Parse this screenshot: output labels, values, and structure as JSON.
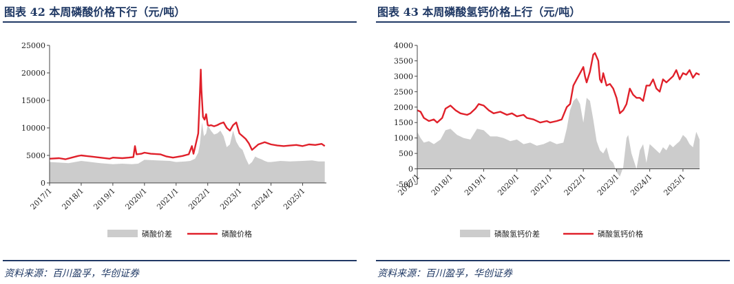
{
  "panels": [
    {
      "title": "图表 42   本周磷酸价格下行（元/吨）",
      "source": "资料来源：百川盈孚，华创证券",
      "chart_data": {
        "type": "area",
        "title": "",
        "ylim": [
          0,
          25000
        ],
        "yticks": [
          0,
          5000,
          10000,
          15000,
          20000,
          25000
        ],
        "xticks": [
          "2017/1",
          "2018/1",
          "2019/1",
          "2020/1",
          "2021/1",
          "2022/1",
          "2023/1",
          "2024/1",
          "2025/1"
        ],
        "xrange": [
          2017.0,
          2025.75
        ],
        "legend": "bottom",
        "grid": false,
        "series": [
          {
            "name": "磷酸价差",
            "kind": "area",
            "color": "#cccccc",
            "x": [
              2017.0,
              2017.3,
              2017.6,
              2017.8,
              2018.0,
              2018.3,
              2018.6,
              2019.0,
              2019.3,
              2019.6,
              2019.8,
              2020.0,
              2020.4,
              2020.8,
              2021.0,
              2021.3,
              2021.45,
              2021.6,
              2021.7,
              2021.75,
              2021.82,
              2021.88,
              2021.95,
              2022.0,
              2022.1,
              2022.2,
              2022.3,
              2022.4,
              2022.5,
              2022.6,
              2022.7,
              2022.8,
              2022.9,
              2023.0,
              2023.1,
              2023.2,
              2023.3,
              2023.4,
              2023.5,
              2023.6,
              2023.7,
              2023.8,
              2023.9,
              2024.0,
              2024.3,
              2024.6,
              2025.0,
              2025.3,
              2025.5,
              2025.7
            ],
            "y": [
              3800,
              3700,
              3600,
              3800,
              4000,
              3800,
              3600,
              3400,
              3500,
              3400,
              3500,
              4200,
              4100,
              4000,
              3800,
              3900,
              4000,
              4400,
              5500,
              7000,
              11000,
              8500,
              9000,
              10500,
              9500,
              8800,
              9000,
              9500,
              8500,
              6500,
              7000,
              9500,
              7500,
              6500,
              6000,
              4500,
              3300,
              3800,
              4800,
              4500,
              4300,
              4000,
              3800,
              3800,
              4000,
              3900,
              4000,
              4100,
              3900,
              3900
            ]
          },
          {
            "name": "磷酸价格",
            "kind": "line",
            "color": "#e0202a",
            "x": [
              2017.0,
              2017.3,
              2017.5,
              2017.7,
              2017.9,
              2018.0,
              2018.3,
              2018.6,
              2018.9,
              2019.0,
              2019.3,
              2019.5,
              2019.65,
              2019.7,
              2019.75,
              2019.9,
              2020.0,
              2020.2,
              2020.5,
              2020.7,
              2020.9,
              2021.0,
              2021.2,
              2021.4,
              2021.5,
              2021.55,
              2021.6,
              2021.7,
              2021.75,
              2021.78,
              2021.8,
              2021.85,
              2021.9,
              2021.95,
              2022.0,
              2022.05,
              2022.1,
              2022.2,
              2022.3,
              2022.4,
              2022.5,
              2022.6,
              2022.7,
              2022.8,
              2022.9,
              2023.0,
              2023.1,
              2023.2,
              2023.3,
              2023.4,
              2023.5,
              2023.6,
              2023.8,
              2024.0,
              2024.2,
              2024.4,
              2024.6,
              2024.8,
              2025.0,
              2025.2,
              2025.4,
              2025.6,
              2025.7
            ],
            "y": [
              4400,
              4500,
              4300,
              4600,
              4900,
              5000,
              4800,
              4600,
              4400,
              4600,
              4500,
              4600,
              4700,
              6700,
              5200,
              5300,
              5500,
              5300,
              5200,
              4800,
              4600,
              4700,
              4900,
              5200,
              6700,
              5300,
              6500,
              9000,
              16000,
              20600,
              17000,
              12000,
              11500,
              12500,
              10500,
              10400,
              10500,
              10300,
              10500,
              10800,
              11000,
              10000,
              9500,
              10500,
              11000,
              9000,
              8500,
              8000,
              7200,
              6000,
              6500,
              7000,
              7400,
              7000,
              6800,
              6700,
              6800,
              6900,
              6700,
              7000,
              6900,
              7100,
              6700
            ]
          }
        ]
      }
    },
    {
      "title": "图表 43   本周磷酸氢钙价格上行（元/吨）",
      "source": "资料来源：百川盈孚，华创证券",
      "chart_data": {
        "type": "area",
        "title": "",
        "ylim": [
          -500,
          4000
        ],
        "yticks": [
          -500,
          0,
          500,
          1000,
          1500,
          2000,
          2500,
          3000,
          3500,
          4000
        ],
        "xticks": [
          "2017/1",
          "2018/1",
          "2019/1",
          "2020/1",
          "2021/1",
          "2022/1",
          "2023/1",
          "2024/1",
          "2025/1"
        ],
        "xrange": [
          2017.0,
          2025.5
        ],
        "legend": "bottom",
        "grid": false,
        "series": [
          {
            "name": "磷酸氢钙价差",
            "kind": "area",
            "color": "#cccccc",
            "x": [
              2017.0,
              2017.1,
              2017.2,
              2017.35,
              2017.5,
              2017.7,
              2017.85,
              2018.0,
              2018.2,
              2018.4,
              2018.6,
              2018.8,
              2019.0,
              2019.2,
              2019.4,
              2019.6,
              2019.8,
              2020.0,
              2020.2,
              2020.4,
              2020.6,
              2020.8,
              2021.0,
              2021.2,
              2021.4,
              2021.5,
              2021.6,
              2021.7,
              2021.8,
              2021.9,
              2022.0,
              2022.1,
              2022.2,
              2022.3,
              2022.4,
              2022.5,
              2022.6,
              2022.7,
              2022.8,
              2022.9,
              2023.0,
              2023.1,
              2023.2,
              2023.3,
              2023.35,
              2023.45,
              2023.6,
              2023.7,
              2023.8,
              2023.9,
              2024.0,
              2024.1,
              2024.2,
              2024.3,
              2024.4,
              2024.5,
              2024.6,
              2024.7,
              2024.8,
              2024.9,
              2025.0,
              2025.1,
              2025.2,
              2025.3,
              2025.4,
              2025.5
            ],
            "y": [
              1200,
              1000,
              850,
              900,
              800,
              950,
              1250,
              1300,
              1100,
              1000,
              950,
              1300,
              1250,
              1050,
              1050,
              1000,
              900,
              950,
              800,
              850,
              750,
              800,
              900,
              800,
              850,
              1300,
              1900,
              2200,
              2300,
              2100,
              1500,
              2300,
              2200,
              1600,
              900,
              600,
              500,
              700,
              300,
              200,
              -100,
              -250,
              50,
              1000,
              1100,
              500,
              0,
              600,
              800,
              200,
              800,
              700,
              600,
              500,
              700,
              600,
              800,
              700,
              800,
              900,
              1100,
              1000,
              800,
              700,
              1200,
              950
            ]
          },
          {
            "name": "磷酸氢钙价格",
            "kind": "line",
            "color": "#e0202a",
            "x": [
              2017.0,
              2017.1,
              2017.2,
              2017.35,
              2017.5,
              2017.6,
              2017.75,
              2017.85,
              2018.0,
              2018.15,
              2018.3,
              2018.5,
              2018.6,
              2018.75,
              2018.85,
              2019.0,
              2019.15,
              2019.3,
              2019.5,
              2019.7,
              2019.85,
              2020.0,
              2020.2,
              2020.3,
              2020.5,
              2020.7,
              2020.9,
              2021.0,
              2021.2,
              2021.35,
              2021.5,
              2021.6,
              2021.7,
              2021.8,
              2021.9,
              2022.0,
              2022.05,
              2022.1,
              2022.2,
              2022.3,
              2022.35,
              2022.45,
              2022.5,
              2022.55,
              2022.6,
              2022.7,
              2022.8,
              2022.9,
              2023.0,
              2023.1,
              2023.2,
              2023.3,
              2023.4,
              2023.5,
              2023.6,
              2023.7,
              2023.8,
              2023.9,
              2024.0,
              2024.1,
              2024.2,
              2024.3,
              2024.4,
              2024.5,
              2024.6,
              2024.7,
              2024.8,
              2024.9,
              2025.0,
              2025.1,
              2025.2,
              2025.3,
              2025.4,
              2025.5
            ],
            "y": [
              1900,
              1850,
              1650,
              1550,
              1600,
              1500,
              1650,
              1950,
              2050,
              1900,
              1800,
              1750,
              1800,
              1950,
              2100,
              2050,
              1900,
              1800,
              1850,
              1750,
              1800,
              1700,
              1750,
              1650,
              1600,
              1500,
              1550,
              1500,
              1550,
              1600,
              2000,
              2100,
              2700,
              2900,
              3100,
              3300,
              3000,
              2800,
              3150,
              3700,
              3750,
              3500,
              2900,
              2800,
              3100,
              2700,
              2750,
              2600,
              2300,
              1800,
              1900,
              2100,
              2600,
              2400,
              2300,
              2300,
              2200,
              2700,
              2700,
              2900,
              2600,
              2500,
              2900,
              2800,
              2900,
              3000,
              3200,
              2900,
              3100,
              3050,
              3200,
              2950,
              3100,
              3050
            ]
          }
        ]
      }
    }
  ]
}
